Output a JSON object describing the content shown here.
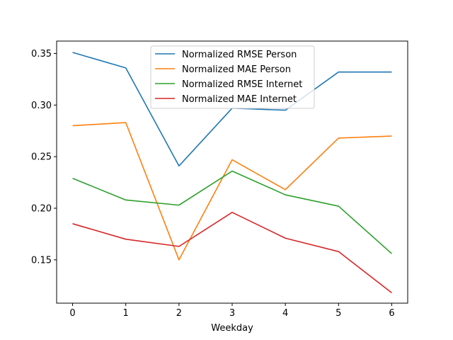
{
  "chart_data": {
    "type": "line",
    "title": "",
    "xlabel": "Weekday",
    "ylabel": "",
    "x": [
      0,
      1,
      2,
      3,
      4,
      5,
      6
    ],
    "xlim": [
      -0.3,
      6.3
    ],
    "ylim": [
      0.108,
      0.362
    ],
    "xticks": [
      0,
      1,
      2,
      3,
      4,
      5,
      6
    ],
    "yticks": [
      0.15,
      0.2,
      0.25,
      0.3,
      0.35
    ],
    "ytick_labels": [
      "0.15",
      "0.20",
      "0.25",
      "0.30",
      "0.35"
    ],
    "grid": false,
    "legend_position": "top-center",
    "series": [
      {
        "name": "Normalized RMSE Person",
        "color": "#1f77b4",
        "values": [
          0.351,
          0.336,
          0.241,
          0.297,
          0.295,
          0.332,
          0.332
        ]
      },
      {
        "name": "Normalized MAE Person",
        "color": "#ff7f0e",
        "values": [
          0.28,
          0.283,
          0.15,
          0.247,
          0.218,
          0.268,
          0.27
        ]
      },
      {
        "name": "Normalized RMSE Internet",
        "color": "#2ca02c",
        "values": [
          0.229,
          0.208,
          0.203,
          0.236,
          0.213,
          0.202,
          0.156
        ]
      },
      {
        "name": "Normalized MAE Internet",
        "color": "#d62728",
        "values": [
          0.185,
          0.17,
          0.163,
          0.196,
          0.171,
          0.158,
          0.118
        ]
      }
    ]
  }
}
